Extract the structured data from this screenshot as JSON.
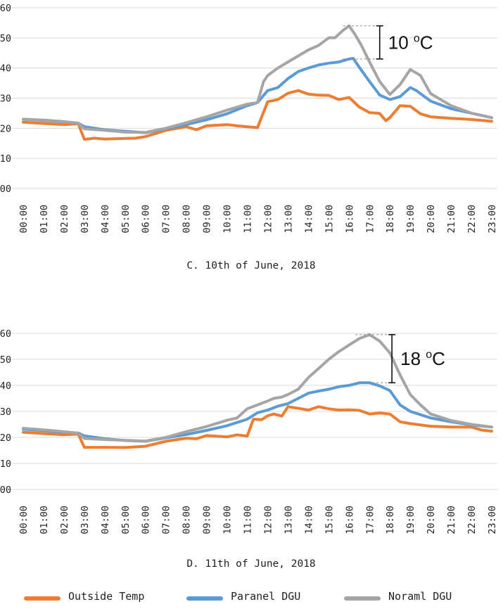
{
  "chart_data": [
    {
      "type": "line",
      "caption": "C. 10th of June, 2018",
      "ylim": [
        0,
        60
      ],
      "y_ticks": [
        "00",
        "10",
        "20",
        "30",
        "40",
        "50",
        "60"
      ],
      "x_ticks": [
        "00:00",
        "01:00",
        "02:00",
        "03:00",
        "04:00",
        "05:00",
        "06:00",
        "07:00",
        "08:00",
        "09:00",
        "10:00",
        "11:00",
        "12:00",
        "13:00",
        "14:00",
        "15:00",
        "16:00",
        "17:00",
        "18:00",
        "19:00",
        "20:00",
        "21:00",
        "22:00",
        "23:00"
      ],
      "grid": "horizontal",
      "annotation": {
        "text": "10 ",
        "superscript": "o",
        "unit": "C",
        "top_value": 54,
        "bottom_value": 43,
        "at_x": 17.5
      },
      "series": [
        {
          "name": "Outside Temp",
          "color": "#ED7D31",
          "x": [
            0,
            1,
            2,
            2.7,
            3,
            3.5,
            4,
            5,
            5.5,
            6,
            7,
            8,
            8.5,
            9,
            10,
            10.5,
            11,
            11.5,
            12,
            12.5,
            13,
            13.5,
            14,
            14.5,
            15,
            15.5,
            16,
            16.5,
            17,
            17.5,
            17.8,
            18,
            18.5,
            19,
            19.5,
            20,
            21,
            22,
            23
          ],
          "values": [
            22,
            21.6,
            21.2,
            21.5,
            16.3,
            16.7,
            16.4,
            16.6,
            16.7,
            17.2,
            19.3,
            20.5,
            19.5,
            20.8,
            21.2,
            20.8,
            20.5,
            20.2,
            28.8,
            29.5,
            31.6,
            32.5,
            31.3,
            31,
            30.9,
            29.5,
            30.2,
            27,
            25.2,
            24.9,
            22.5,
            23.5,
            27.5,
            27.3,
            24.8,
            23.8,
            23.3,
            22.9,
            22.3
          ]
        },
        {
          "name": "Paranel DGU",
          "color": "#5B9BD5",
          "x": [
            0,
            1,
            2,
            2.7,
            3,
            4,
            5,
            6,
            7,
            8,
            9,
            10,
            11,
            11.5,
            12,
            12.5,
            13,
            13.5,
            14,
            14.5,
            15,
            15.5,
            16,
            16.2,
            16.5,
            17,
            17.5,
            18,
            18.5,
            19,
            19.3,
            20,
            21,
            22,
            23
          ],
          "values": [
            23,
            22.6,
            22.1,
            21.7,
            20.5,
            19.5,
            19,
            18.5,
            19.8,
            21.2,
            22.8,
            24.8,
            27.5,
            28.5,
            32.5,
            33.5,
            36.5,
            38.8,
            40,
            41,
            41.6,
            42,
            43,
            43.2,
            40.2,
            35.5,
            31,
            29.5,
            30.5,
            33.5,
            32.5,
            29,
            26.5,
            25,
            23.5
          ]
        },
        {
          "name": "Noraml DGU",
          "color": "#A5A5A5",
          "x": [
            0,
            1,
            2,
            2.7,
            3,
            4,
            5,
            6,
            7,
            8,
            9,
            10,
            11,
            11.5,
            11.8,
            12,
            12.5,
            13,
            13.5,
            14,
            14.5,
            15,
            15.3,
            15.7,
            16,
            16.3,
            16.6,
            17,
            17.5,
            18,
            18.5,
            19,
            19.5,
            20,
            21,
            22,
            23
          ],
          "values": [
            23,
            22.7,
            22.2,
            21.7,
            19.8,
            19.3,
            18.7,
            18.6,
            20,
            21.8,
            23.8,
            26,
            28,
            28.5,
            35.5,
            37.5,
            40,
            42,
            44,
            46,
            47.5,
            50,
            50,
            52.5,
            54,
            51,
            47.5,
            42,
            35.5,
            31.2,
            34.5,
            39.5,
            37.5,
            31.5,
            27.5,
            25,
            23.5
          ]
        }
      ]
    },
    {
      "type": "line",
      "caption": "D. 11th of June, 2018",
      "ylim": [
        0,
        60
      ],
      "y_ticks": [
        "00",
        "10",
        "20",
        "30",
        "40",
        "50",
        "60"
      ],
      "x_ticks": [
        "00:00",
        "01:00",
        "02:00",
        "03:00",
        "04:00",
        "05:00",
        "06:00",
        "07:00",
        "08:00",
        "09:00",
        "10:00",
        "11:00",
        "12:00",
        "13:00",
        "14:00",
        "15:00",
        "16:00",
        "17:00",
        "18:00",
        "19:00",
        "20:00",
        "21:00",
        "22:00",
        "23:00"
      ],
      "grid": "horizontal",
      "annotation": {
        "text": "18 ",
        "superscript": "o",
        "unit": "C",
        "top_value": 59.5,
        "bottom_value": 41,
        "at_x": 18.1
      },
      "series": [
        {
          "name": "Outside Temp",
          "color": "#ED7D31",
          "x": [
            0,
            1,
            2,
            2.7,
            3,
            4,
            5,
            6,
            7,
            8,
            8.5,
            9,
            10,
            10.5,
            11,
            11.3,
            11.7,
            12,
            12.3,
            12.7,
            13,
            13.5,
            14,
            14.5,
            15,
            15.5,
            16,
            16.5,
            17,
            17.5,
            18,
            18.5,
            19,
            20,
            21,
            22,
            22.5,
            23
          ],
          "values": [
            22,
            21.5,
            21,
            21.3,
            16.2,
            16.2,
            16.1,
            16.6,
            18.5,
            19.7,
            19.5,
            20.7,
            20.2,
            21,
            20.5,
            27,
            26.8,
            28.3,
            29,
            28.2,
            31.8,
            31.2,
            30.5,
            31.8,
            31,
            30.5,
            30.6,
            30.4,
            29,
            29.4,
            29,
            26,
            25.3,
            24.3,
            24,
            24,
            22.8,
            22.4
          ]
        },
        {
          "name": "Paranel DGU",
          "color": "#5B9BD5",
          "x": [
            0,
            1,
            2,
            2.7,
            3,
            4,
            5,
            6,
            7,
            8,
            9,
            10,
            11,
            11.5,
            12,
            12.5,
            13,
            13.5,
            14,
            14.5,
            15,
            15.5,
            16,
            16.5,
            17,
            17.5,
            18,
            18.5,
            19,
            20,
            21,
            22,
            23
          ],
          "values": [
            23.2,
            22.6,
            22,
            21.7,
            20.6,
            19.5,
            18.8,
            18.5,
            19.8,
            21.1,
            22.7,
            24.5,
            27,
            29.5,
            30.5,
            32,
            33,
            35,
            37,
            37.8,
            38.5,
            39.5,
            40,
            41,
            41,
            39.8,
            38,
            32.5,
            30,
            27.5,
            26,
            24.8,
            24
          ]
        },
        {
          "name": "Noraml DGU",
          "color": "#A5A5A5",
          "x": [
            0,
            1,
            2,
            2.7,
            3,
            4,
            5,
            6,
            7,
            8,
            9,
            10,
            10.5,
            11,
            11.5,
            12,
            12.3,
            12.7,
            13,
            13.5,
            14,
            14.5,
            15,
            15.5,
            16,
            16.5,
            17,
            17.5,
            18,
            18.5,
            19,
            19.5,
            20,
            21,
            22,
            23
          ],
          "values": [
            23.5,
            22.9,
            22.2,
            21.6,
            19.6,
            19.2,
            18.9,
            18.6,
            20,
            22.2,
            24.2,
            26.6,
            27.5,
            31,
            32.5,
            34,
            35,
            35.5,
            36.5,
            38.5,
            43,
            46.5,
            50,
            53,
            55.5,
            58,
            59.5,
            57,
            52.5,
            44,
            36.5,
            32.5,
            29,
            26.5,
            25,
            24
          ]
        }
      ]
    }
  ],
  "legend": [
    {
      "label": "Outside Temp",
      "color": "#ED7D31"
    },
    {
      "label": "Paranel DGU",
      "color": "#5B9BD5"
    },
    {
      "label": "Noraml DGU",
      "color": "#A5A5A5"
    }
  ]
}
